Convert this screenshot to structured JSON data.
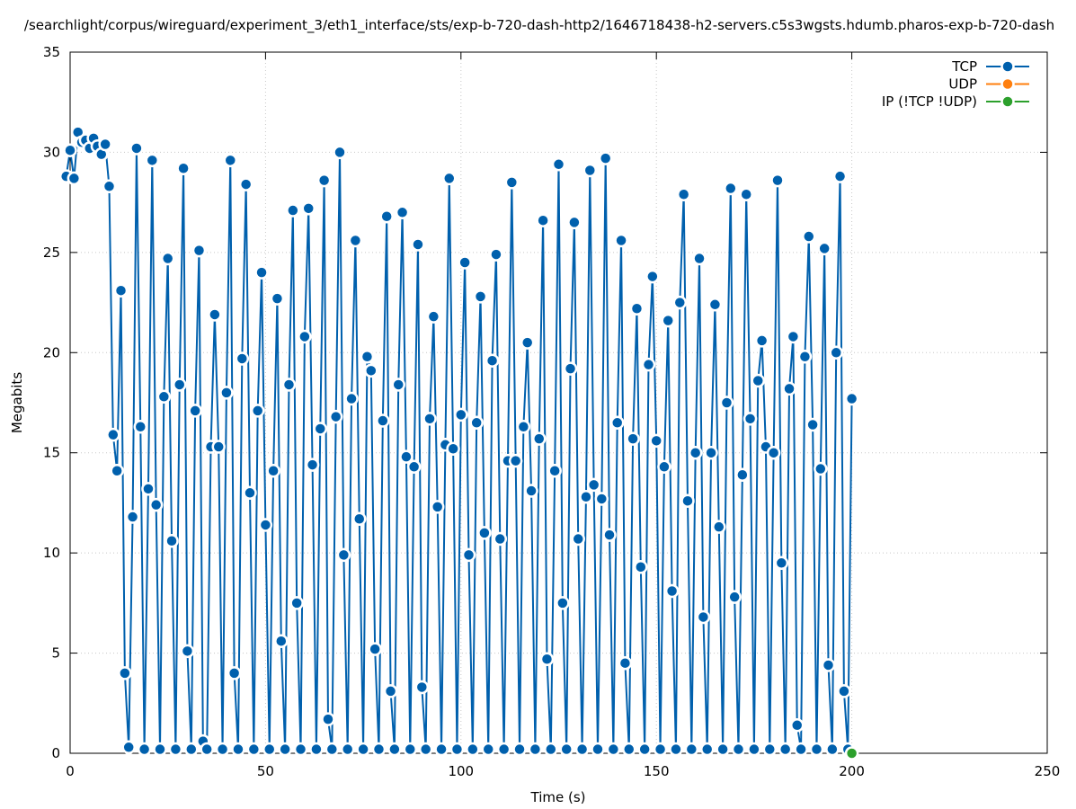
{
  "chart_data": {
    "type": "line",
    "title": "/searchlight/corpus/wireguard/experiment_3/eth1_interface/sts/exp-b-720-dash-http2/1646718438-h2-servers.c5s3wgsts.hdumb.pharos-exp-b-720-dash",
    "xlabel": "Time (s)",
    "ylabel": "Megabits",
    "xlim": [
      0,
      250
    ],
    "ylim": [
      0,
      35
    ],
    "xticks": [
      0,
      50,
      100,
      150,
      200,
      250
    ],
    "yticks": [
      0,
      5,
      10,
      15,
      20,
      25,
      30,
      35
    ],
    "grid": true,
    "legend_position": "top-right",
    "series": [
      {
        "name": "TCP",
        "color": "#0060ad",
        "points": [
          [
            -1,
            28.8
          ],
          [
            0,
            30.1
          ],
          [
            1,
            28.7
          ],
          [
            2,
            31
          ],
          [
            3,
            30.5
          ],
          [
            4,
            30.6
          ],
          [
            5,
            30.2
          ],
          [
            6,
            30.7
          ],
          [
            7,
            30.3
          ],
          [
            8,
            29.9
          ],
          [
            9,
            30.4
          ],
          [
            10,
            28.3
          ],
          [
            11,
            15.9
          ],
          [
            12,
            14.1
          ],
          [
            13,
            23.1
          ],
          [
            14,
            4
          ],
          [
            15,
            0.3
          ],
          [
            16,
            11.8
          ],
          [
            17,
            30.2
          ],
          [
            18,
            16.3
          ],
          [
            19,
            0.2
          ],
          [
            20,
            13.2
          ],
          [
            21,
            29.6
          ],
          [
            22,
            12.4
          ],
          [
            23,
            0.2
          ],
          [
            24,
            17.8
          ],
          [
            25,
            24.7
          ],
          [
            26,
            10.6
          ],
          [
            27,
            0.2
          ],
          [
            28,
            18.4
          ],
          [
            29,
            29.2
          ],
          [
            30,
            5.1
          ],
          [
            31,
            0.2
          ],
          [
            32,
            17.1
          ],
          [
            33,
            25.1
          ],
          [
            34,
            0.6
          ],
          [
            35,
            0.2
          ],
          [
            36,
            15.3
          ],
          [
            37,
            21.9
          ],
          [
            38,
            15.3
          ],
          [
            39,
            0.2
          ],
          [
            40,
            18
          ],
          [
            41,
            29.6
          ],
          [
            42,
            4
          ],
          [
            43,
            0.2
          ],
          [
            44,
            19.7
          ],
          [
            45,
            28.4
          ],
          [
            46,
            13
          ],
          [
            47,
            0.2
          ],
          [
            48,
            17.1
          ],
          [
            49,
            24
          ],
          [
            50,
            11.4
          ],
          [
            51,
            0.2
          ],
          [
            52,
            14.1
          ],
          [
            53,
            22.7
          ],
          [
            54,
            5.6
          ],
          [
            55,
            0.2
          ],
          [
            56,
            18.4
          ],
          [
            57,
            27.1
          ],
          [
            58,
            7.5
          ],
          [
            59,
            0.2
          ],
          [
            60,
            20.8
          ],
          [
            61,
            27.2
          ],
          [
            62,
            14.4
          ],
          [
            63,
            0.2
          ],
          [
            64,
            16.2
          ],
          [
            65,
            28.6
          ],
          [
            66,
            1.7
          ],
          [
            67,
            0.2
          ],
          [
            68,
            16.8
          ],
          [
            69,
            30
          ],
          [
            70,
            9.9
          ],
          [
            71,
            0.2
          ],
          [
            72,
            17.7
          ],
          [
            73,
            25.6
          ],
          [
            74,
            11.7
          ],
          [
            75,
            0.2
          ],
          [
            76,
            19.8
          ],
          [
            77,
            19.1
          ],
          [
            78,
            5.2
          ],
          [
            79,
            0.2
          ],
          [
            80,
            16.6
          ],
          [
            81,
            26.8
          ],
          [
            82,
            3.1
          ],
          [
            83,
            0.2
          ],
          [
            84,
            18.4
          ],
          [
            85,
            27
          ],
          [
            86,
            14.8
          ],
          [
            87,
            0.2
          ],
          [
            88,
            14.3
          ],
          [
            89,
            25.4
          ],
          [
            90,
            3.3
          ],
          [
            91,
            0.2
          ],
          [
            92,
            16.7
          ],
          [
            93,
            21.8
          ],
          [
            94,
            12.3
          ],
          [
            95,
            0.2
          ],
          [
            96,
            15.4
          ],
          [
            97,
            28.7
          ],
          [
            98,
            15.2
          ],
          [
            99,
            0.2
          ],
          [
            100,
            16.9
          ],
          [
            101,
            24.5
          ],
          [
            102,
            9.9
          ],
          [
            103,
            0.2
          ],
          [
            104,
            16.5
          ],
          [
            105,
            22.8
          ],
          [
            106,
            11
          ],
          [
            107,
            0.2
          ],
          [
            108,
            19.6
          ],
          [
            109,
            24.9
          ],
          [
            110,
            10.7
          ],
          [
            111,
            0.2
          ],
          [
            112,
            14.6
          ],
          [
            113,
            28.5
          ],
          [
            114,
            14.6
          ],
          [
            115,
            0.2
          ],
          [
            116,
            16.3
          ],
          [
            117,
            20.5
          ],
          [
            118,
            13.1
          ],
          [
            119,
            0.2
          ],
          [
            120,
            15.7
          ],
          [
            121,
            26.6
          ],
          [
            122,
            4.7
          ],
          [
            123,
            0.2
          ],
          [
            124,
            14.1
          ],
          [
            125,
            29.4
          ],
          [
            126,
            7.5
          ],
          [
            127,
            0.2
          ],
          [
            128,
            19.2
          ],
          [
            129,
            26.5
          ],
          [
            130,
            10.7
          ],
          [
            131,
            0.2
          ],
          [
            132,
            12.8
          ],
          [
            133,
            29.1
          ],
          [
            134,
            13.4
          ],
          [
            135,
            0.2
          ],
          [
            136,
            12.7
          ],
          [
            137,
            29.7
          ],
          [
            138,
            10.9
          ],
          [
            139,
            0.2
          ],
          [
            140,
            16.5
          ],
          [
            141,
            25.6
          ],
          [
            142,
            4.5
          ],
          [
            143,
            0.2
          ],
          [
            144,
            15.7
          ],
          [
            145,
            22.2
          ],
          [
            146,
            9.3
          ],
          [
            147,
            0.2
          ],
          [
            148,
            19.4
          ],
          [
            149,
            23.8
          ],
          [
            150,
            15.6
          ],
          [
            151,
            0.2
          ],
          [
            152,
            14.3
          ],
          [
            153,
            21.6
          ],
          [
            154,
            8.1
          ],
          [
            155,
            0.2
          ],
          [
            156,
            22.5
          ],
          [
            157,
            27.9
          ],
          [
            158,
            12.6
          ],
          [
            159,
            0.2
          ],
          [
            160,
            15
          ],
          [
            161,
            24.7
          ],
          [
            162,
            6.8
          ],
          [
            163,
            0.2
          ],
          [
            164,
            15
          ],
          [
            165,
            22.4
          ],
          [
            166,
            11.3
          ],
          [
            167,
            0.2
          ],
          [
            168,
            17.5
          ],
          [
            169,
            28.2
          ],
          [
            170,
            7.8
          ],
          [
            171,
            0.2
          ],
          [
            172,
            13.9
          ],
          [
            173,
            27.9
          ],
          [
            174,
            16.7
          ],
          [
            175,
            0.2
          ],
          [
            176,
            18.6
          ],
          [
            177,
            20.6
          ],
          [
            178,
            15.3
          ],
          [
            179,
            0.2
          ],
          [
            180,
            15
          ],
          [
            181,
            28.6
          ],
          [
            182,
            9.5
          ],
          [
            183,
            0.2
          ],
          [
            184,
            18.2
          ],
          [
            185,
            20.8
          ],
          [
            186,
            1.4
          ],
          [
            187,
            0.2
          ],
          [
            188,
            19.8
          ],
          [
            189,
            25.8
          ],
          [
            190,
            16.4
          ],
          [
            191,
            0.2
          ],
          [
            192,
            14.2
          ],
          [
            193,
            25.2
          ],
          [
            194,
            4.4
          ],
          [
            195,
            0.2
          ],
          [
            196,
            20
          ],
          [
            197,
            28.8
          ],
          [
            198,
            3.1
          ],
          [
            199,
            0.2
          ],
          [
            200,
            17.7
          ]
        ]
      },
      {
        "name": "UDP",
        "color": "#ff7f0e",
        "points": []
      },
      {
        "name": "IP (!TCP  !UDP)",
        "color": "#2ca02c",
        "points": [
          [
            200,
            0
          ]
        ]
      }
    ]
  }
}
